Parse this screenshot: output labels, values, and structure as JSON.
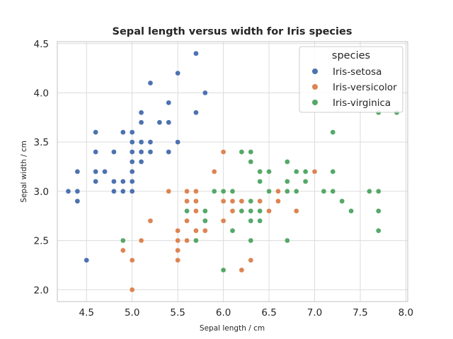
{
  "chart_data": {
    "type": "scatter",
    "title": "Sepal length versus width for Iris species",
    "xlabel": "Sepal length / cm",
    "ylabel": "Sepal width / cm",
    "xlim": [
      4.18,
      8.02
    ],
    "ylim": [
      1.88,
      4.52
    ],
    "xticks": [
      "4.5",
      "5.0",
      "5.5",
      "6.0",
      "6.5",
      "7.0",
      "7.5",
      "8.0"
    ],
    "yticks": [
      "2.0",
      "2.5",
      "3.0",
      "3.5",
      "4.0",
      "4.5"
    ],
    "grid": true,
    "legend": {
      "title": "species",
      "placement": "top-right"
    },
    "series": [
      {
        "name": "Iris-setosa",
        "color": "#4c72b0",
        "points": [
          [
            5.1,
            3.5
          ],
          [
            4.9,
            3.0
          ],
          [
            4.7,
            3.2
          ],
          [
            4.6,
            3.1
          ],
          [
            5.0,
            3.6
          ],
          [
            5.4,
            3.9
          ],
          [
            4.6,
            3.4
          ],
          [
            5.0,
            3.4
          ],
          [
            4.4,
            2.9
          ],
          [
            4.9,
            3.1
          ],
          [
            5.4,
            3.7
          ],
          [
            4.8,
            3.4
          ],
          [
            4.8,
            3.0
          ],
          [
            4.3,
            3.0
          ],
          [
            5.8,
            4.0
          ],
          [
            5.7,
            4.4
          ],
          [
            5.4,
            3.9
          ],
          [
            5.1,
            3.5
          ],
          [
            5.7,
            3.8
          ],
          [
            5.1,
            3.8
          ],
          [
            5.4,
            3.4
          ],
          [
            5.1,
            3.7
          ],
          [
            4.6,
            3.6
          ],
          [
            5.1,
            3.3
          ],
          [
            4.8,
            3.4
          ],
          [
            5.0,
            3.0
          ],
          [
            5.0,
            3.4
          ],
          [
            5.2,
            3.5
          ],
          [
            5.2,
            3.4
          ],
          [
            4.7,
            3.2
          ],
          [
            4.8,
            3.1
          ],
          [
            5.4,
            3.4
          ],
          [
            5.2,
            4.1
          ],
          [
            5.5,
            4.2
          ],
          [
            4.9,
            3.1
          ],
          [
            5.0,
            3.2
          ],
          [
            5.5,
            3.5
          ],
          [
            4.9,
            3.1
          ],
          [
            4.4,
            3.0
          ],
          [
            5.1,
            3.4
          ],
          [
            5.0,
            3.5
          ],
          [
            4.5,
            2.3
          ],
          [
            4.4,
            3.2
          ],
          [
            5.0,
            3.5
          ],
          [
            5.1,
            3.8
          ],
          [
            4.8,
            3.0
          ],
          [
            5.1,
            3.8
          ],
          [
            4.6,
            3.2
          ],
          [
            5.3,
            3.7
          ],
          [
            5.0,
            3.3
          ],
          [
            4.9,
            3.6
          ],
          [
            5.0,
            3.1
          ]
        ]
      },
      {
        "name": "Iris-versicolor",
        "color": "#dd8452",
        "points": [
          [
            7.0,
            3.2
          ],
          [
            6.4,
            3.2
          ],
          [
            6.9,
            3.1
          ],
          [
            5.5,
            2.3
          ],
          [
            6.5,
            2.8
          ],
          [
            5.7,
            2.8
          ],
          [
            6.3,
            3.3
          ],
          [
            4.9,
            2.4
          ],
          [
            6.6,
            2.9
          ],
          [
            5.2,
            2.7
          ],
          [
            5.0,
            2.0
          ],
          [
            5.9,
            3.0
          ],
          [
            6.0,
            2.2
          ],
          [
            6.1,
            2.9
          ],
          [
            5.6,
            2.9
          ],
          [
            6.7,
            3.1
          ],
          [
            5.6,
            3.0
          ],
          [
            5.8,
            2.7
          ],
          [
            6.2,
            2.2
          ],
          [
            5.6,
            2.5
          ],
          [
            5.9,
            3.2
          ],
          [
            6.1,
            2.8
          ],
          [
            6.3,
            2.5
          ],
          [
            6.1,
            2.8
          ],
          [
            6.4,
            2.9
          ],
          [
            6.6,
            3.0
          ],
          [
            6.8,
            2.8
          ],
          [
            6.7,
            3.0
          ],
          [
            6.0,
            2.9
          ],
          [
            5.7,
            2.6
          ],
          [
            5.5,
            2.4
          ],
          [
            5.5,
            2.4
          ],
          [
            5.8,
            2.7
          ],
          [
            6.0,
            2.7
          ],
          [
            5.4,
            3.0
          ],
          [
            6.0,
            3.4
          ],
          [
            6.7,
            3.1
          ],
          [
            6.3,
            2.3
          ],
          [
            5.6,
            3.0
          ],
          [
            5.5,
            2.5
          ],
          [
            5.5,
            2.6
          ],
          [
            6.1,
            3.0
          ],
          [
            5.8,
            2.6
          ],
          [
            5.0,
            2.3
          ],
          [
            5.6,
            2.7
          ],
          [
            5.7,
            3.0
          ],
          [
            5.7,
            2.9
          ],
          [
            6.2,
            2.9
          ],
          [
            5.1,
            2.5
          ],
          [
            5.7,
            2.8
          ]
        ]
      },
      {
        "name": "Iris-virginica",
        "color": "#55a868",
        "points": [
          [
            6.3,
            3.3
          ],
          [
            5.8,
            2.7
          ],
          [
            7.1,
            3.0
          ],
          [
            6.3,
            2.9
          ],
          [
            6.5,
            3.0
          ],
          [
            7.6,
            3.0
          ],
          [
            4.9,
            2.5
          ],
          [
            7.3,
            2.9
          ],
          [
            6.7,
            2.5
          ],
          [
            7.2,
            3.6
          ],
          [
            6.5,
            3.2
          ],
          [
            6.4,
            2.7
          ],
          [
            6.8,
            3.0
          ],
          [
            5.7,
            2.5
          ],
          [
            5.8,
            2.8
          ],
          [
            6.4,
            3.2
          ],
          [
            6.5,
            3.0
          ],
          [
            7.7,
            3.8
          ],
          [
            7.7,
            2.6
          ],
          [
            6.0,
            2.2
          ],
          [
            6.9,
            3.2
          ],
          [
            5.6,
            2.8
          ],
          [
            7.7,
            2.8
          ],
          [
            6.3,
            2.7
          ],
          [
            6.7,
            3.3
          ],
          [
            7.2,
            3.2
          ],
          [
            6.2,
            2.8
          ],
          [
            6.1,
            3.0
          ],
          [
            6.4,
            2.8
          ],
          [
            7.2,
            3.0
          ],
          [
            7.4,
            2.8
          ],
          [
            7.9,
            3.8
          ],
          [
            6.4,
            2.8
          ],
          [
            6.3,
            2.8
          ],
          [
            6.1,
            2.6
          ],
          [
            7.7,
            3.0
          ],
          [
            6.3,
            3.4
          ],
          [
            6.4,
            3.1
          ],
          [
            6.0,
            3.0
          ],
          [
            6.9,
            3.1
          ],
          [
            6.7,
            3.1
          ],
          [
            6.9,
            3.1
          ],
          [
            5.8,
            2.7
          ],
          [
            6.8,
            3.2
          ],
          [
            6.7,
            3.3
          ],
          [
            6.7,
            3.0
          ],
          [
            6.3,
            2.5
          ],
          [
            6.5,
            3.0
          ],
          [
            6.2,
            3.4
          ],
          [
            5.9,
            3.0
          ]
        ]
      }
    ]
  }
}
